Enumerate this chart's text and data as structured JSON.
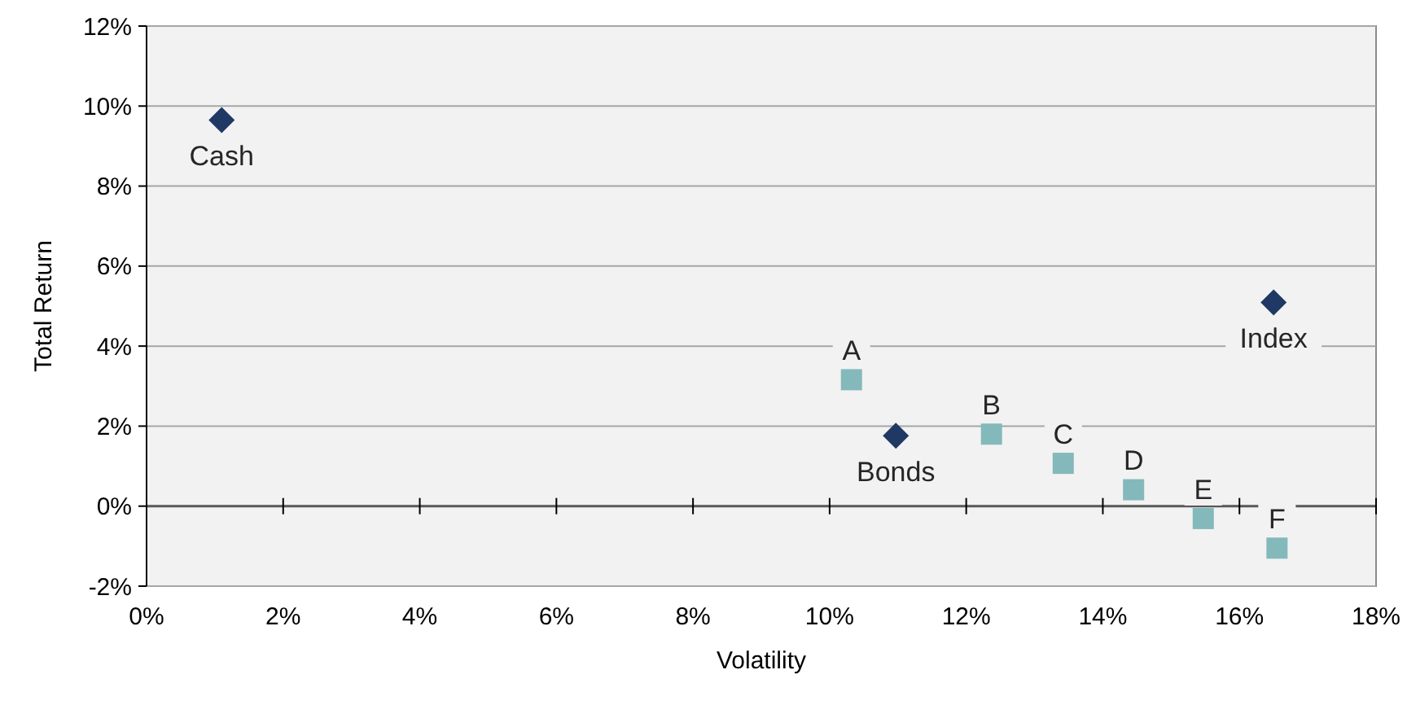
{
  "chart_data": {
    "type": "scatter",
    "xlabel": "Volatility",
    "ylabel": "Total Return",
    "xlim": [
      0,
      18
    ],
    "ylim": [
      -2,
      12
    ],
    "xticks": [
      {
        "value": 0,
        "label": "0%"
      },
      {
        "value": 2,
        "label": "2%"
      },
      {
        "value": 4,
        "label": "4%"
      },
      {
        "value": 6,
        "label": "6%"
      },
      {
        "value": 8,
        "label": "8%"
      },
      {
        "value": 10,
        "label": "10%"
      },
      {
        "value": 12,
        "label": "12%"
      },
      {
        "value": 14,
        "label": "14%"
      },
      {
        "value": 16,
        "label": "16%"
      },
      {
        "value": 18,
        "label": "18%"
      }
    ],
    "yticks": [
      {
        "value": -2,
        "label": "-2%"
      },
      {
        "value": 0,
        "label": "0%"
      },
      {
        "value": 2,
        "label": "2%"
      },
      {
        "value": 4,
        "label": "4%"
      },
      {
        "value": 6,
        "label": "6%"
      },
      {
        "value": 8,
        "label": "8%"
      },
      {
        "value": 10,
        "label": "10%"
      },
      {
        "value": 12,
        "label": "12%"
      }
    ],
    "grid": "y",
    "series": [
      {
        "color": "#1f3864",
        "marker": "diamond",
        "x": [
          1.1,
          10.97,
          16.5
        ],
        "values": [
          9.65,
          1.76,
          5.09
        ]
      },
      {
        "color": "#84b9bb",
        "marker": "square",
        "x": [
          10.32,
          12.37,
          13.42,
          14.45,
          15.47,
          16.55
        ],
        "values": [
          3.16,
          1.8,
          1.07,
          0.41,
          -0.31,
          -1.05
        ]
      }
    ],
    "annotations": [
      {
        "text": "Cash",
        "x": 1.1,
        "y": 9.65
      },
      {
        "text": "Bonds",
        "x": 10.97,
        "y": 1.76
      },
      {
        "text": "Index",
        "x": 16.5,
        "y": 5.09
      },
      {
        "text": "A",
        "x": 10.32,
        "y": 3.16
      },
      {
        "text": "B",
        "x": 12.37,
        "y": 1.8
      },
      {
        "text": "C",
        "x": 13.42,
        "y": 1.07
      },
      {
        "text": "D",
        "x": 14.45,
        "y": 0.41
      },
      {
        "text": "E",
        "x": 15.47,
        "y": -0.31
      },
      {
        "text": "F",
        "x": 16.55,
        "y": -1.05
      }
    ]
  }
}
